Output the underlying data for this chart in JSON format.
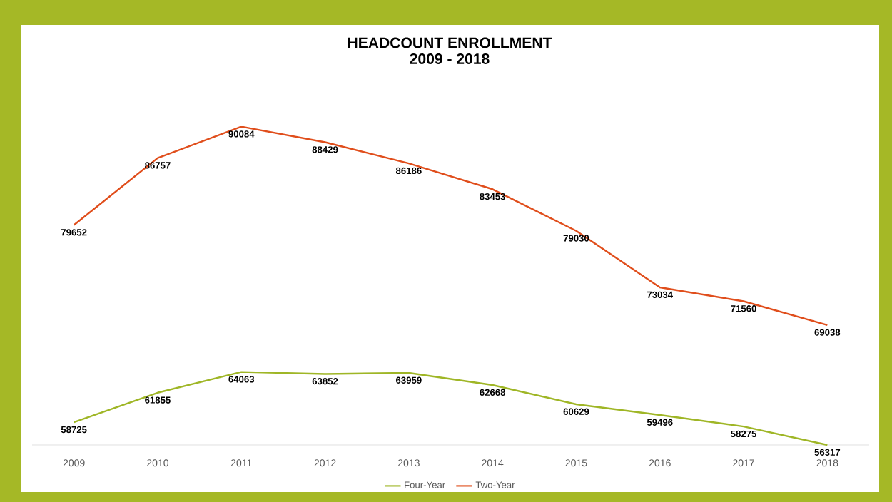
{
  "chart_data": {
    "type": "line",
    "title": "HEADCOUNT ENROLLMENT",
    "subtitle": "2009 - 2018",
    "categories": [
      "2009",
      "2010",
      "2011",
      "2012",
      "2013",
      "2014",
      "2015",
      "2016",
      "2017",
      "2018"
    ],
    "series": [
      {
        "name": "Four-Year",
        "color": "#9fb626",
        "values": [
          58725,
          61855,
          64063,
          63852,
          63959,
          62668,
          60629,
          59496,
          58275,
          56317
        ]
      },
      {
        "name": "Two-Year",
        "color": "#e04e1c",
        "values": [
          79652,
          86757,
          90084,
          88429,
          86186,
          83453,
          79030,
          73034,
          71560,
          69038
        ]
      }
    ],
    "tick_labels": "x",
    "data_labels": true,
    "legend": "bottom",
    "grid": false,
    "marker": "none",
    "line_style": "solid"
  }
}
